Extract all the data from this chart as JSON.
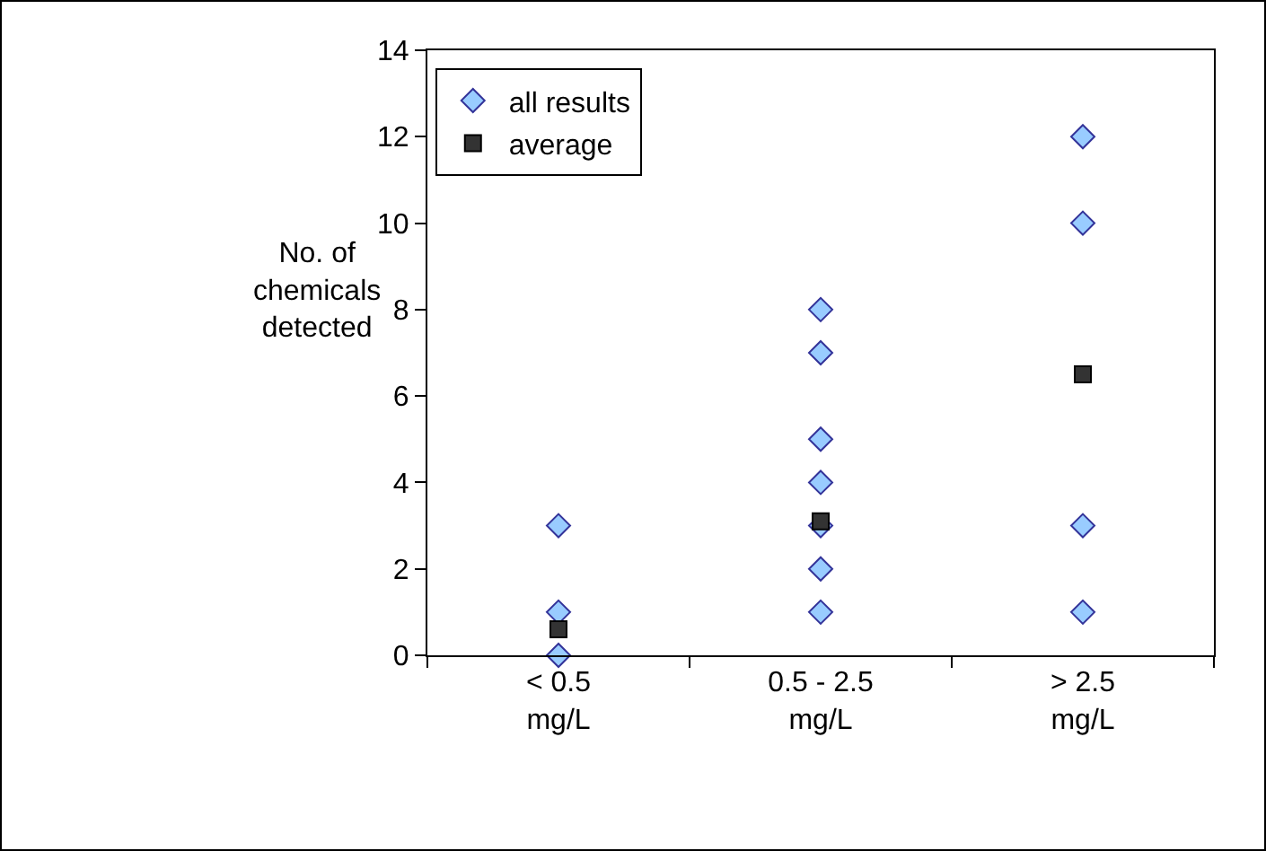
{
  "chart_data": {
    "type": "scatter",
    "ylabel": "No. of chemicals detected",
    "categories": [
      "< 0.5 mg/L",
      "0.5 - 2.5 mg/L",
      "> 2.5 mg/L"
    ],
    "series": [
      {
        "name": "all results",
        "marker": "diamond",
        "color": "#99ccff",
        "x": [
          "< 0.5 mg/L",
          "< 0.5 mg/L",
          "< 0.5 mg/L",
          "0.5 - 2.5 mg/L",
          "0.5 - 2.5 mg/L",
          "0.5 - 2.5 mg/L",
          "0.5 - 2.5 mg/L",
          "0.5 - 2.5 mg/L",
          "0.5 - 2.5 mg/L",
          "0.5 - 2.5 mg/L",
          "> 2.5 mg/L",
          "> 2.5 mg/L",
          "> 2.5 mg/L",
          "> 2.5 mg/L"
        ],
        "values": [
          3,
          1,
          0,
          8,
          7,
          5,
          4,
          3,
          2,
          1,
          12,
          10,
          3,
          1
        ]
      },
      {
        "name": "average",
        "marker": "square",
        "color": "#333333",
        "x": [
          "< 0.5 mg/L",
          "0.5 - 2.5 mg/L",
          "> 2.5 mg/L"
        ],
        "values": [
          0.6,
          3.1,
          6.5
        ]
      }
    ],
    "ylim": [
      0,
      14
    ],
    "yticks": [
      0,
      2,
      4,
      6,
      8,
      10,
      12,
      14
    ],
    "grid": false,
    "legend": "top left"
  }
}
